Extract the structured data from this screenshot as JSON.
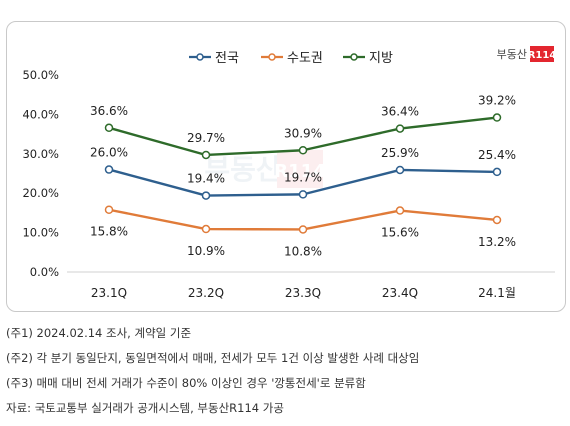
{
  "brand": {
    "name": "부동산",
    "mark": "R114",
    "color": "#e3262f"
  },
  "chart_data": {
    "type": "line",
    "categories": [
      "23.1Q",
      "23.2Q",
      "23.3Q",
      "23.4Q",
      "24.1월"
    ],
    "series": [
      {
        "name": "전국",
        "color": "#2e5f8e",
        "values": [
          26.0,
          19.4,
          19.7,
          25.9,
          25.4
        ],
        "labels": [
          "26.0%",
          "19.4%",
          "19.7%",
          "25.9%",
          "25.4%"
        ]
      },
      {
        "name": "수도권",
        "color": "#e07b39",
        "values": [
          15.8,
          10.9,
          10.8,
          15.6,
          13.2
        ],
        "labels": [
          "15.8%",
          "10.9%",
          "10.8%",
          "15.6%",
          "13.2%"
        ]
      },
      {
        "name": "지방",
        "color": "#2e6b2a",
        "values": [
          36.6,
          29.7,
          30.9,
          36.4,
          39.2
        ],
        "labels": [
          "36.6%",
          "29.7%",
          "30.9%",
          "36.4%",
          "39.2%"
        ]
      }
    ],
    "yticks": [
      0,
      10,
      20,
      30,
      40,
      50
    ],
    "ytick_labels": [
      "0.0%",
      "10.0%",
      "20.0%",
      "30.0%",
      "40.0%",
      "50.0%"
    ],
    "ylim": [
      0,
      50
    ],
    "legend_position": "top-center",
    "grid": false
  },
  "notes": [
    "(주1) 2024.02.14 조사, 계약일 기준",
    "(주2) 각 분기 동일단지, 동일면적에서 매매, 전세가 모두 1건 이상 발생한 사례 대상임",
    "(주3) 매매 대비 전세 거래가 수준이 80% 이상인 경우 '깡통전세'로 분류함",
    "자료: 국토교통부 실거래가 공개시스템, 부동산R114 가공"
  ]
}
